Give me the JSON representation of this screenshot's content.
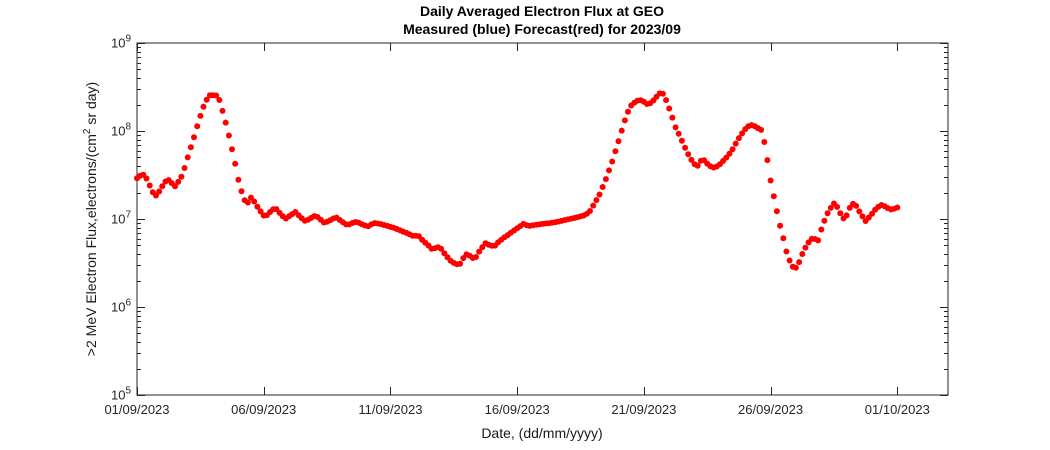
{
  "figure": {
    "title_line1": "Daily Averaged Electron Flux at GEO",
    "title_line2": "Measured (blue) Forecast(red) for 2023/09",
    "xlabel": "Date, (dd/mm/yyyy)",
    "ylabel_part1": ">2 MeV Electron Flux,electrons/(cm",
    "ylabel_sup": "2",
    "ylabel_part2": " sr day)",
    "colors": {
      "marker": "#ff0000",
      "axis": "#262626",
      "tick_text": "#262626",
      "title_text": "#000000",
      "background": "#ffffff"
    }
  },
  "chart_data": {
    "type": "scatter",
    "title": "Daily Averaged Electron Flux at GEO",
    "subtitle": "Measured (blue) Forecast(red) for 2023/09",
    "xlabel": "Date, (dd/mm/yyyy)",
    "ylabel": ">2 MeV Electron Flux,electrons/(cm^2 sr day)",
    "grid": false,
    "legend_position": "none",
    "x_axis": {
      "lim_days": [
        1,
        33
      ],
      "ticks": [
        {
          "day": 1,
          "label": "01/09/2023"
        },
        {
          "day": 6,
          "label": "06/09/2023"
        },
        {
          "day": 11,
          "label": "11/09/2023"
        },
        {
          "day": 16,
          "label": "16/09/2023"
        },
        {
          "day": 21,
          "label": "21/09/2023"
        },
        {
          "day": 26,
          "label": "26/09/2023"
        },
        {
          "day": 31,
          "label": "01/10/2023"
        }
      ]
    },
    "y_axis": {
      "scale": "log",
      "lim": [
        100000.0,
        1000000000.0
      ],
      "lim_exp": [
        5,
        9
      ],
      "tick_exponents": [
        5,
        6,
        7,
        8,
        9
      ],
      "tick_base": "10",
      "minor_ticks_mantissas": [
        2,
        3,
        4,
        5,
        6,
        7,
        8,
        9
      ]
    },
    "marker": {
      "shape": "dot",
      "radius_px": 3,
      "step_days": 0.125,
      "color": "#ff0000"
    },
    "series": [
      {
        "name": "Forecast(red)",
        "color": "#ff0000",
        "points": [
          [
            1.0,
            29000000.0
          ],
          [
            1.15,
            31500000.0
          ],
          [
            1.3,
            32000000.0
          ],
          [
            1.45,
            26000000.0
          ],
          [
            1.6,
            20500000.0
          ],
          [
            1.75,
            18500000.0
          ],
          [
            1.9,
            21000000.0
          ],
          [
            2.05,
            25000000.0
          ],
          [
            2.2,
            28500000.0
          ],
          [
            2.35,
            26000000.0
          ],
          [
            2.5,
            23500000.0
          ],
          [
            2.65,
            27000000.0
          ],
          [
            2.8,
            32000000.0
          ],
          [
            2.95,
            45000000.0
          ],
          [
            3.1,
            62000000.0
          ],
          [
            3.25,
            85000000.0
          ],
          [
            3.4,
            120000000.0
          ],
          [
            3.55,
            165000000.0
          ],
          [
            3.7,
            215000000.0
          ],
          [
            3.85,
            250000000.0
          ],
          [
            3.95,
            270000000.0
          ],
          [
            4.05,
            240000000.0
          ],
          [
            4.15,
            258000000.0
          ],
          [
            4.25,
            225000000.0
          ],
          [
            4.4,
            160000000.0
          ],
          [
            4.55,
            110000000.0
          ],
          [
            4.7,
            72000000.0
          ],
          [
            4.85,
            46000000.0
          ],
          [
            5.0,
            28000000.0
          ],
          [
            5.1,
            22000000.0
          ],
          [
            5.2,
            17000000.0
          ],
          [
            5.35,
            15000000.0
          ],
          [
            5.5,
            17500000.0
          ],
          [
            5.65,
            15500000.0
          ],
          [
            5.8,
            13000000.0
          ],
          [
            6.05,
            10500000.0
          ],
          [
            6.25,
            12000000.0
          ],
          [
            6.45,
            13500000.0
          ],
          [
            6.65,
            11500000.0
          ],
          [
            6.85,
            10000000.0
          ],
          [
            7.05,
            11000000.0
          ],
          [
            7.25,
            12000000.0
          ],
          [
            7.45,
            10500000.0
          ],
          [
            7.65,
            9400000.0
          ],
          [
            7.85,
            10200000.0
          ],
          [
            8.05,
            11000000.0
          ],
          [
            8.25,
            9800000.0
          ],
          [
            8.4,
            9000000.0
          ],
          [
            8.6,
            9600000.0
          ],
          [
            8.85,
            10500000.0
          ],
          [
            9.05,
            9500000.0
          ],
          [
            9.3,
            8500000.0
          ],
          [
            9.5,
            9000000.0
          ],
          [
            9.65,
            9300000.0
          ],
          [
            9.85,
            8800000.0
          ],
          [
            10.1,
            8200000.0
          ],
          [
            10.35,
            9000000.0
          ],
          [
            10.6,
            8800000.0
          ],
          [
            10.9,
            8300000.0
          ],
          [
            11.15,
            7900000.0
          ],
          [
            11.4,
            7400000.0
          ],
          [
            11.65,
            6900000.0
          ],
          [
            11.9,
            6400000.0
          ],
          [
            12.1,
            6500000.0
          ],
          [
            12.3,
            5600000.0
          ],
          [
            12.5,
            5000000.0
          ],
          [
            12.65,
            4500000.0
          ],
          [
            12.85,
            4800000.0
          ],
          [
            13.0,
            4600000.0
          ],
          [
            13.2,
            3800000.0
          ],
          [
            13.4,
            3300000.0
          ],
          [
            13.6,
            3050000.0
          ],
          [
            13.75,
            3100000.0
          ],
          [
            13.9,
            3700000.0
          ],
          [
            14.05,
            4100000.0
          ],
          [
            14.2,
            3600000.0
          ],
          [
            14.35,
            3600000.0
          ],
          [
            14.55,
            4500000.0
          ],
          [
            14.75,
            5300000.0
          ],
          [
            14.95,
            5000000.0
          ],
          [
            15.1,
            4900000.0
          ],
          [
            15.3,
            5600000.0
          ],
          [
            15.5,
            6200000.0
          ],
          [
            15.7,
            6800000.0
          ],
          [
            15.9,
            7500000.0
          ],
          [
            16.1,
            8200000.0
          ],
          [
            16.25,
            8800000.0
          ],
          [
            16.45,
            8300000.0
          ],
          [
            16.65,
            8500000.0
          ],
          [
            17.0,
            8800000.0
          ],
          [
            17.3,
            9000000.0
          ],
          [
            17.6,
            9300000.0
          ],
          [
            18.0,
            9900000.0
          ],
          [
            18.4,
            10500000.0
          ],
          [
            18.65,
            11000000.0
          ],
          [
            18.85,
            12000000.0
          ],
          [
            19.05,
            15000000.0
          ],
          [
            19.25,
            19000000.0
          ],
          [
            19.45,
            26000000.0
          ],
          [
            19.6,
            34000000.0
          ],
          [
            19.75,
            45000000.0
          ],
          [
            19.9,
            62000000.0
          ],
          [
            20.05,
            85000000.0
          ],
          [
            20.2,
            120000000.0
          ],
          [
            20.35,
            160000000.0
          ],
          [
            20.5,
            195000000.0
          ],
          [
            20.7,
            220000000.0
          ],
          [
            20.85,
            225000000.0
          ],
          [
            21.0,
            215000000.0
          ],
          [
            21.15,
            200000000.0
          ],
          [
            21.3,
            210000000.0
          ],
          [
            21.45,
            235000000.0
          ],
          [
            21.6,
            265000000.0
          ],
          [
            21.7,
            275000000.0
          ],
          [
            21.8,
            255000000.0
          ],
          [
            21.9,
            215000000.0
          ],
          [
            22.05,
            165000000.0
          ],
          [
            22.15,
            135000000.0
          ],
          [
            22.25,
            110000000.0
          ],
          [
            22.4,
            90000000.0
          ],
          [
            22.55,
            72000000.0
          ],
          [
            22.7,
            58000000.0
          ],
          [
            22.85,
            48000000.0
          ],
          [
            23.0,
            42000000.0
          ],
          [
            23.15,
            40000000.0
          ],
          [
            23.3,
            49000000.0
          ],
          [
            23.45,
            44000000.0
          ],
          [
            23.6,
            40000000.0
          ],
          [
            23.8,
            38000000.0
          ],
          [
            24.0,
            42000000.0
          ],
          [
            24.2,
            48000000.0
          ],
          [
            24.35,
            54000000.0
          ],
          [
            24.5,
            62000000.0
          ],
          [
            24.65,
            74000000.0
          ],
          [
            24.8,
            88000000.0
          ],
          [
            25.0,
            105000000.0
          ],
          [
            25.2,
            118000000.0
          ],
          [
            25.35,
            114000000.0
          ],
          [
            25.5,
            108000000.0
          ],
          [
            25.65,
            102000000.0
          ],
          [
            25.75,
            75000000.0
          ],
          [
            25.85,
            52000000.0
          ],
          [
            25.95,
            34000000.0
          ],
          [
            26.05,
            22000000.0
          ],
          [
            26.2,
            15000000.0
          ],
          [
            26.3,
            10000000.0
          ],
          [
            26.45,
            7000000.0
          ],
          [
            26.55,
            5200000.0
          ],
          [
            26.65,
            4000000.0
          ],
          [
            26.8,
            3100000.0
          ],
          [
            26.95,
            2650000.0
          ],
          [
            27.1,
            3100000.0
          ],
          [
            27.25,
            4000000.0
          ],
          [
            27.4,
            4900000.0
          ],
          [
            27.55,
            5700000.0
          ],
          [
            27.7,
            6200000.0
          ],
          [
            27.85,
            5400000.0
          ],
          [
            28.0,
            7600000.0
          ],
          [
            28.15,
            10000000.0
          ],
          [
            28.3,
            12500000.0
          ],
          [
            28.5,
            15000000.0
          ],
          [
            28.65,
            13500000.0
          ],
          [
            28.85,
            10000000.0
          ],
          [
            29.0,
            11000000.0
          ],
          [
            29.2,
            15000000.0
          ],
          [
            29.35,
            14500000.0
          ],
          [
            29.55,
            11500000.0
          ],
          [
            29.75,
            9500000.0
          ],
          [
            29.95,
            11000000.0
          ],
          [
            30.15,
            13000000.0
          ],
          [
            30.35,
            14500000.0
          ],
          [
            30.55,
            13800000.0
          ],
          [
            30.7,
            12800000.0
          ],
          [
            30.85,
            13000000.0
          ],
          [
            31.0,
            13500000.0
          ]
        ]
      }
    ]
  }
}
